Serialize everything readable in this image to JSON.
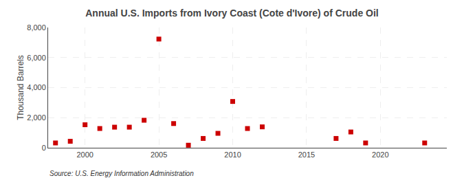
{
  "chart_data": {
    "type": "scatter",
    "title": "Annual U.S. Imports from Ivory Coast (Cote d'Ivore) of Crude Oil",
    "ylabel": "Thousand Barrels",
    "source": "Source: U.S. Energy Information Administration",
    "x": [
      1998,
      1999,
      2000,
      2001,
      2002,
      2003,
      2004,
      2005,
      2006,
      2007,
      2008,
      2009,
      2010,
      2011,
      2012,
      2017,
      2018,
      2019,
      2023
    ],
    "values": [
      320,
      430,
      1530,
      1280,
      1370,
      1370,
      1830,
      7230,
      1610,
      170,
      620,
      960,
      3080,
      1280,
      1390,
      620,
      1050,
      320,
      320
    ],
    "color": "#cc0000",
    "marker": "square",
    "xlim": [
      1997.5,
      2024.5
    ],
    "xticks": [
      2000,
      2005,
      2010,
      2015,
      2020
    ],
    "ylim": [
      0,
      8000
    ],
    "yticks": [
      0,
      {
        "value": 2000,
        "label": "2,000"
      },
      {
        "value": 4000,
        "label": "4,000"
      },
      {
        "value": 6000,
        "label": "6,000"
      },
      {
        "value": 8000,
        "label": "8,000"
      }
    ],
    "grid": true
  }
}
